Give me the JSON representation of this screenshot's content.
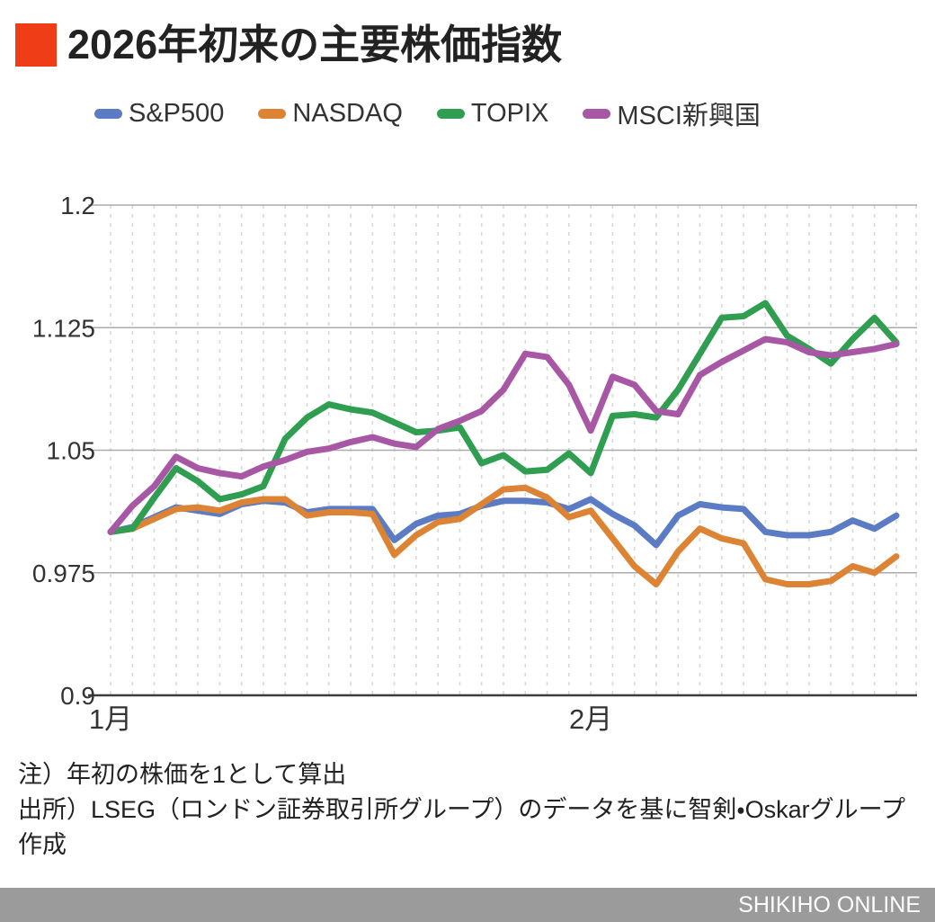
{
  "header": {
    "title": "2026年初来の主要株価指数",
    "accent_color": "#ef3e17"
  },
  "chart_data": {
    "type": "line",
    "title": "2026年初来の主要株価指数",
    "note": "年初の株価を1として算出",
    "grid": {
      "horizontal": true,
      "vertical": "dashed"
    },
    "legend_position": "top",
    "y_axis": {
      "range": [
        0.9,
        1.2
      ],
      "ticks": [
        {
          "value": 1.2,
          "label": "1.2"
        },
        {
          "value": 1.125,
          "label": "1.125"
        },
        {
          "value": 1.05,
          "label": "1.05"
        },
        {
          "value": 0.975,
          "label": "0.975"
        },
        {
          "value": 0.9,
          "label": "0.9"
        }
      ]
    },
    "x_axis": {
      "unit": "trading-day index",
      "ticks": [
        {
          "index": 0,
          "label": "1月"
        },
        {
          "index": 22,
          "label": "2月"
        }
      ]
    },
    "series": [
      {
        "name": "S&P500",
        "color": "#5b7cc4",
        "values": [
          1.0,
          1.003,
          1.009,
          1.015,
          1.013,
          1.011,
          1.017,
          1.019,
          1.018,
          1.012,
          1.014,
          1.014,
          1.014,
          0.995,
          1.005,
          1.01,
          1.011,
          1.016,
          1.019,
          1.019,
          1.018,
          1.014,
          1.02,
          1.011,
          1.004,
          0.992,
          1.01,
          1.017,
          1.015,
          1.014,
          1.0,
          0.998,
          0.998,
          1.0,
          1.007,
          1.002,
          1.01
        ]
      },
      {
        "name": "NASDAQ",
        "color": "#dd8434",
        "values": [
          1.0,
          1.002,
          1.008,
          1.014,
          1.015,
          1.013,
          1.018,
          1.02,
          1.02,
          1.01,
          1.012,
          1.012,
          1.011,
          0.986,
          0.998,
          1.006,
          1.008,
          1.017,
          1.026,
          1.027,
          1.021,
          1.009,
          1.013,
          0.996,
          0.979,
          0.968,
          0.988,
          1.002,
          0.996,
          0.993,
          0.971,
          0.968,
          0.968,
          0.97,
          0.979,
          0.975,
          0.985
        ]
      },
      {
        "name": "TOPIX",
        "color": "#2f9e50",
        "values": [
          1.0,
          1.002,
          1.021,
          1.039,
          1.031,
          1.02,
          1.023,
          1.028,
          1.057,
          1.07,
          1.078,
          1.075,
          1.073,
          1.067,
          1.061,
          1.062,
          1.064,
          1.042,
          1.047,
          1.037,
          1.038,
          1.048,
          1.036,
          1.071,
          1.072,
          1.07,
          1.087,
          1.109,
          1.131,
          1.132,
          1.14,
          1.12,
          1.112,
          1.103,
          1.118,
          1.131,
          1.116
        ]
      },
      {
        "name": "MSCI新興国",
        "color": "#a857a5",
        "values": [
          1.0,
          1.016,
          1.028,
          1.046,
          1.039,
          1.036,
          1.034,
          1.04,
          1.044,
          1.049,
          1.051,
          1.055,
          1.058,
          1.054,
          1.052,
          1.063,
          1.068,
          1.074,
          1.087,
          1.109,
          1.107,
          1.09,
          1.062,
          1.095,
          1.09,
          1.074,
          1.072,
          1.096,
          1.104,
          1.111,
          1.118,
          1.116,
          1.11,
          1.108,
          1.11,
          1.112,
          1.115
        ]
      }
    ]
  },
  "notes": {
    "note1": "注）年初の株価を1として算出",
    "note2": "出所）LSEG（ロンドン証券取引所グループ）のデータを基に智剣・Oskarグループ作成"
  },
  "footer": {
    "brand": "SHIKIHO ONLINE"
  }
}
